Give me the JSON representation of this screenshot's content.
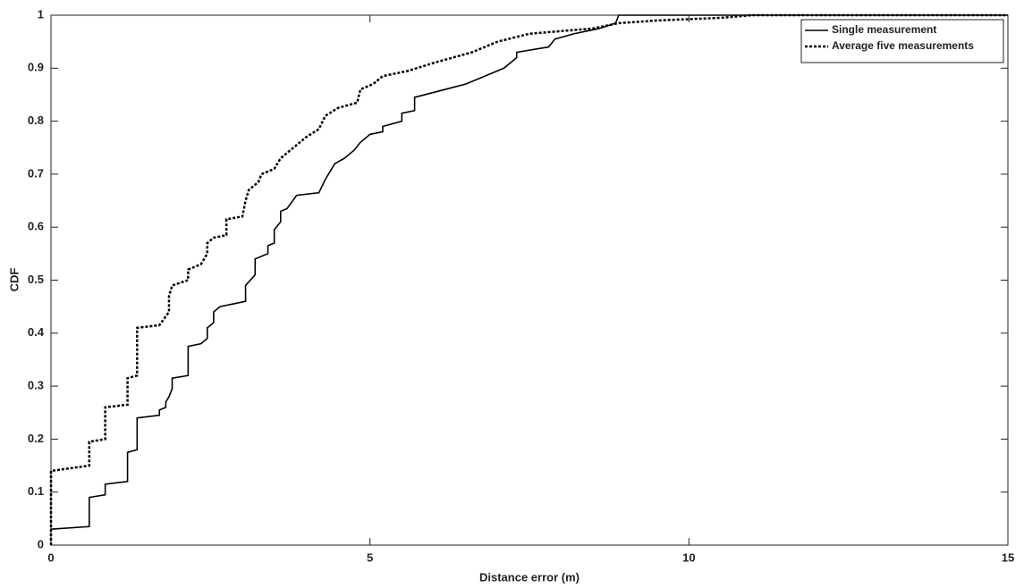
{
  "chart_data": {
    "type": "line",
    "xlabel": "Distance error (m)",
    "ylabel": "CDF",
    "xlim": [
      0,
      15
    ],
    "ylim": [
      0,
      1
    ],
    "xticks": [
      0,
      5,
      10,
      15
    ],
    "yticks": [
      0,
      0.1,
      0.2,
      0.3,
      0.4,
      0.5,
      0.6,
      0.7,
      0.8,
      0.9,
      1
    ],
    "legend": "upper right",
    "series": [
      {
        "name": "Single measurement",
        "color": "#000000",
        "dash": "solid",
        "x": [
          0,
          0.6,
          0.6,
          0.85,
          0.85,
          1.2,
          1.2,
          1.35,
          1.35,
          1.7,
          1.7,
          1.8,
          1.8,
          1.85,
          1.9,
          1.9,
          2.15,
          2.15,
          2.35,
          2.45,
          2.45,
          2.55,
          2.55,
          2.65,
          2.85,
          3.05,
          3.05,
          3.2,
          3.2,
          3.4,
          3.4,
          3.5,
          3.5,
          3.6,
          3.6,
          3.7,
          3.85,
          4.2,
          4.3,
          4.4,
          4.45,
          4.6,
          4.75,
          4.85,
          5.0,
          5.2,
          5.2,
          5.5,
          5.5,
          5.7,
          5.7,
          6.5,
          6.9,
          7.1,
          7.3,
          7.3,
          7.8,
          7.9,
          8.2,
          8.6,
          8.85,
          8.9,
          15
        ],
        "values": [
          0.03,
          0.035,
          0.09,
          0.095,
          0.115,
          0.12,
          0.175,
          0.18,
          0.24,
          0.245,
          0.255,
          0.26,
          0.27,
          0.28,
          0.295,
          0.315,
          0.32,
          0.375,
          0.38,
          0.39,
          0.41,
          0.42,
          0.44,
          0.45,
          0.455,
          0.46,
          0.49,
          0.51,
          0.54,
          0.55,
          0.565,
          0.57,
          0.595,
          0.61,
          0.63,
          0.635,
          0.66,
          0.665,
          0.69,
          0.71,
          0.72,
          0.73,
          0.745,
          0.76,
          0.775,
          0.78,
          0.79,
          0.8,
          0.815,
          0.82,
          0.845,
          0.87,
          0.89,
          0.9,
          0.92,
          0.93,
          0.94,
          0.955,
          0.965,
          0.975,
          0.985,
          1.0,
          1.0
        ]
      },
      {
        "name": "Average five measurements",
        "color": "#000000",
        "dash": "dotted",
        "x": [
          0,
          0,
          0.6,
          0.6,
          0.85,
          0.85,
          1.2,
          1.2,
          1.35,
          1.35,
          1.7,
          1.85,
          1.85,
          1.9,
          2.15,
          2.15,
          2.35,
          2.45,
          2.45,
          2.55,
          2.75,
          2.75,
          3.0,
          3.05,
          3.1,
          3.25,
          3.3,
          3.5,
          3.6,
          3.8,
          4.0,
          4.2,
          4.3,
          4.5,
          4.8,
          4.85,
          5.05,
          5.2,
          5.6,
          6.0,
          6.6,
          7.0,
          7.5,
          8.5,
          8.9,
          9.5,
          10.5,
          11,
          15
        ],
        "values": [
          0,
          0.14,
          0.15,
          0.195,
          0.2,
          0.26,
          0.265,
          0.315,
          0.32,
          0.41,
          0.415,
          0.44,
          0.47,
          0.49,
          0.5,
          0.52,
          0.53,
          0.55,
          0.57,
          0.58,
          0.585,
          0.615,
          0.62,
          0.65,
          0.67,
          0.685,
          0.7,
          0.71,
          0.73,
          0.75,
          0.77,
          0.785,
          0.81,
          0.825,
          0.835,
          0.86,
          0.87,
          0.885,
          0.895,
          0.91,
          0.93,
          0.95,
          0.965,
          0.975,
          0.985,
          0.99,
          0.995,
          1.0,
          1.0
        ]
      }
    ]
  }
}
